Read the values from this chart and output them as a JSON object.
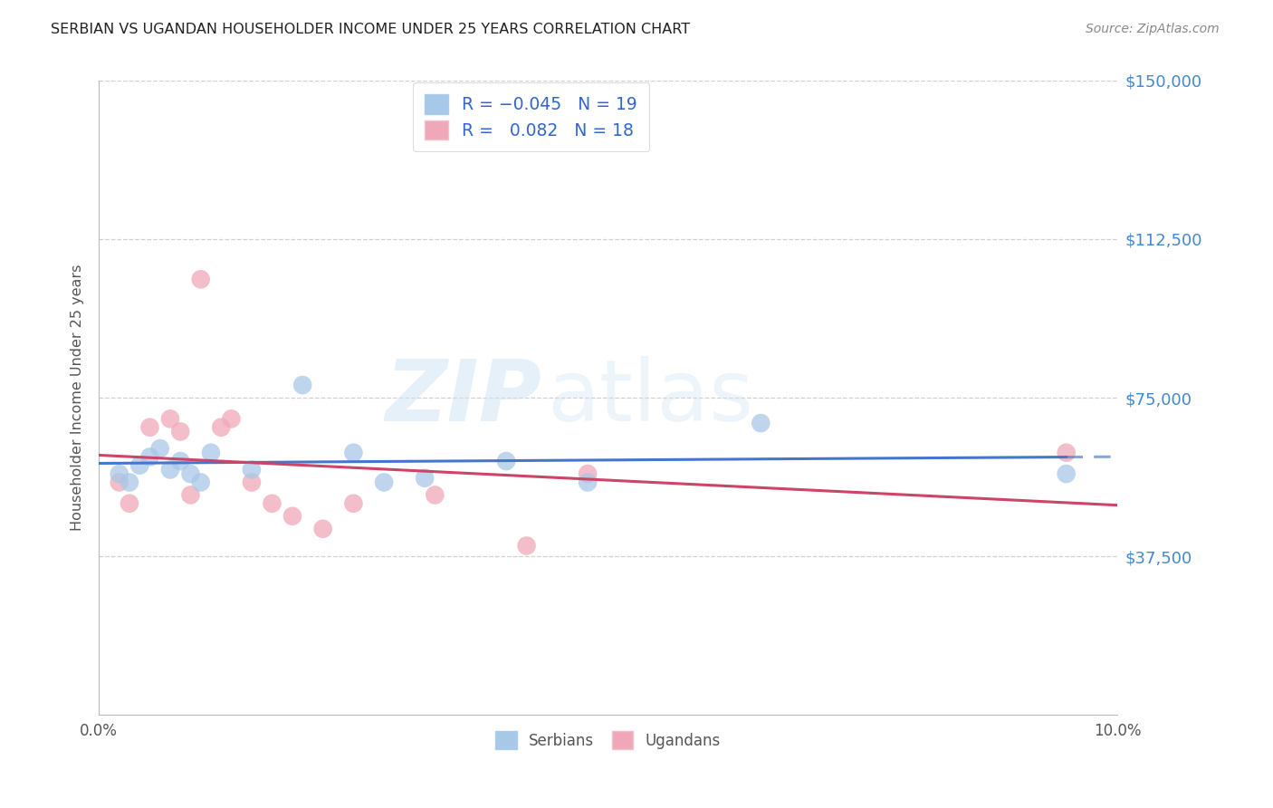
{
  "title": "SERBIAN VS UGANDAN HOUSEHOLDER INCOME UNDER 25 YEARS CORRELATION CHART",
  "source": "Source: ZipAtlas.com",
  "ylabel": "Householder Income Under 25 years",
  "yticks": [
    0,
    37500,
    75000,
    112500,
    150000
  ],
  "ytick_labels": [
    "",
    "$37,500",
    "$75,000",
    "$112,500",
    "$150,000"
  ],
  "xlim": [
    0.0,
    0.1
  ],
  "ylim": [
    0,
    150000
  ],
  "watermark_zip": "ZIP",
  "watermark_atlas": "atlas",
  "legend_label1": "Serbians",
  "legend_label2": "Ugandans",
  "color_serbian": "#a8c8e8",
  "color_ugandan": "#f0a8b8",
  "color_serbian_line": "#4477cc",
  "color_ugandan_line": "#cc4466",
  "background_color": "#ffffff",
  "grid_color": "#cccccc",
  "title_color": "#222222",
  "right_label_color": "#4488cc",
  "legend_text_color": "#3366cc",
  "serbian_x": [
    0.002,
    0.003,
    0.004,
    0.005,
    0.006,
    0.007,
    0.008,
    0.009,
    0.01,
    0.011,
    0.015,
    0.02,
    0.025,
    0.028,
    0.032,
    0.04,
    0.048,
    0.065,
    0.095
  ],
  "serbian_y": [
    57000,
    55000,
    59000,
    61000,
    63000,
    58000,
    60000,
    57000,
    55000,
    62000,
    58000,
    78000,
    62000,
    55000,
    56000,
    60000,
    55000,
    69000,
    57000
  ],
  "ugandan_x": [
    0.002,
    0.003,
    0.005,
    0.007,
    0.008,
    0.009,
    0.01,
    0.012,
    0.013,
    0.015,
    0.017,
    0.019,
    0.022,
    0.025,
    0.033,
    0.042,
    0.048,
    0.095
  ],
  "ugandan_y": [
    55000,
    50000,
    68000,
    70000,
    67000,
    52000,
    103000,
    68000,
    70000,
    55000,
    50000,
    47000,
    44000,
    50000,
    52000,
    40000,
    57000,
    62000
  ]
}
